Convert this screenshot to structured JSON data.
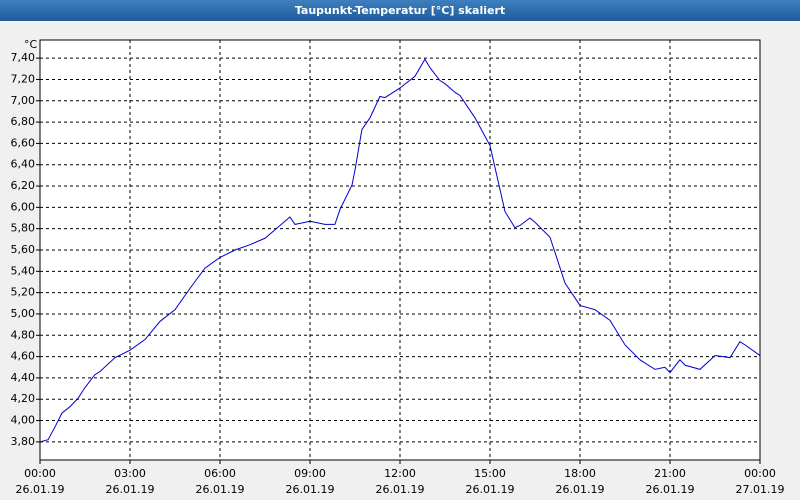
{
  "chart_data": {
    "type": "line",
    "title": "Taupunkt-Temperatur [°C] skaliert",
    "y_label": "°C",
    "color": "#0000cc",
    "grid": true,
    "x": [
      0,
      0.27,
      0.5,
      0.73,
      1,
      1.27,
      1.5,
      1.83,
      2,
      2.5,
      3,
      3.5,
      4,
      4.5,
      5,
      5.5,
      6,
      6.5,
      7,
      7.5,
      8,
      8.33,
      8.5,
      9,
      9.5,
      9.83,
      10,
      10.4,
      10.5,
      10.73,
      11,
      11.33,
      11.5,
      12,
      12.5,
      12.83,
      13,
      13.33,
      13.5,
      13.83,
      14,
      14.5,
      15,
      15.5,
      15.83,
      16,
      16.33,
      16.5,
      17,
      17.5,
      18,
      18.5,
      19,
      19.5,
      20,
      20.5,
      20.83,
      21,
      21.33,
      21.5,
      22,
      22.5,
      23,
      23.33,
      23.5,
      24
    ],
    "values": [
      3.8,
      3.82,
      3.94,
      4.07,
      4.13,
      4.21,
      4.31,
      4.43,
      4.46,
      4.59,
      4.66,
      4.76,
      4.93,
      5.04,
      5.24,
      5.43,
      5.53,
      5.6,
      5.65,
      5.71,
      5.83,
      5.91,
      5.84,
      5.87,
      5.84,
      5.84,
      5.98,
      6.21,
      6.35,
      6.73,
      6.84,
      7.04,
      7.03,
      7.12,
      7.23,
      7.39,
      7.31,
      7.19,
      7.16,
      7.08,
      7.05,
      6.84,
      6.58,
      5.96,
      5.81,
      5.83,
      5.9,
      5.86,
      5.72,
      5.29,
      5.08,
      5.04,
      4.94,
      4.71,
      4.57,
      4.48,
      4.5,
      4.45,
      4.57,
      4.52,
      4.48,
      4.61,
      4.59,
      4.74,
      4.71,
      4.61
    ],
    "xlim": [
      0,
      24
    ],
    "xticks": [
      {
        "value": 0,
        "label": "00:00",
        "date": "26.01.19"
      },
      {
        "value": 3,
        "label": "03:00",
        "date": "26.01.19"
      },
      {
        "value": 6,
        "label": "06:00",
        "date": "26.01.19"
      },
      {
        "value": 9,
        "label": "09:00",
        "date": "26.01.19"
      },
      {
        "value": 12,
        "label": "12:00",
        "date": "26.01.19"
      },
      {
        "value": 15,
        "label": "15:00",
        "date": "26.01.19"
      },
      {
        "value": 18,
        "label": "18:00",
        "date": "26.01.19"
      },
      {
        "value": 21,
        "label": "21:00",
        "date": "26.01.19"
      },
      {
        "value": 24,
        "label": "00:00",
        "date": "27.01.19"
      }
    ],
    "ylim": [
      3.63,
      7.57
    ],
    "yticks": [
      {
        "value": 3.8,
        "label": "3,80"
      },
      {
        "value": 4.0,
        "label": "4,00"
      },
      {
        "value": 4.2,
        "label": "4,20"
      },
      {
        "value": 4.4,
        "label": "4,40"
      },
      {
        "value": 4.6,
        "label": "4,60"
      },
      {
        "value": 4.8,
        "label": "4,80"
      },
      {
        "value": 5.0,
        "label": "5,00"
      },
      {
        "value": 5.2,
        "label": "5,20"
      },
      {
        "value": 5.4,
        "label": "5,40"
      },
      {
        "value": 5.6,
        "label": "5,60"
      },
      {
        "value": 5.8,
        "label": "5,80"
      },
      {
        "value": 6.0,
        "label": "6,00"
      },
      {
        "value": 6.2,
        "label": "6,20"
      },
      {
        "value": 6.4,
        "label": "6,40"
      },
      {
        "value": 6.6,
        "label": "6,60"
      },
      {
        "value": 6.8,
        "label": "6,80"
      },
      {
        "value": 7.0,
        "label": "7,00"
      },
      {
        "value": 7.2,
        "label": "7,20"
      },
      {
        "value": 7.4,
        "label": "7,40"
      }
    ]
  }
}
